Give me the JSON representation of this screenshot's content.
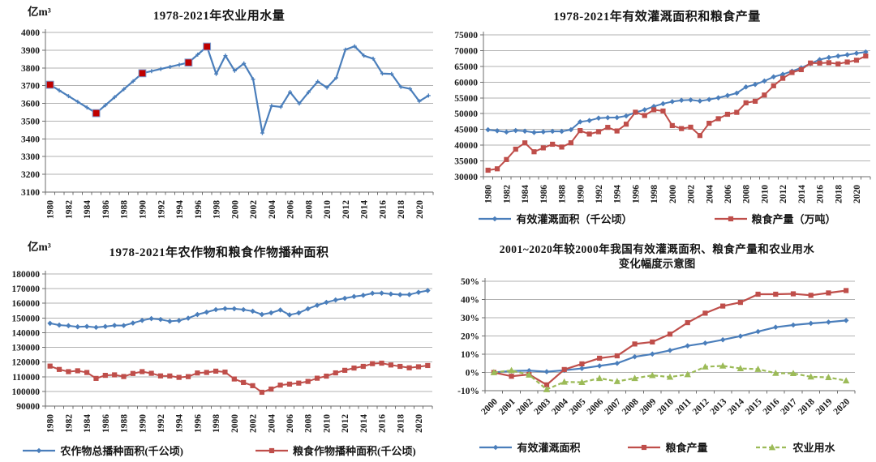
{
  "page": {
    "background": "#ffffff"
  },
  "colors": {
    "blue": "#4a7ebb",
    "red": "#bf4e4a",
    "highlight_red": "#c00000",
    "highlight_stroke": "#7b9cd1",
    "green": "#9cbb58",
    "grid": "#b2b2b2",
    "axis": "#6e6e6e",
    "text": "#1a1a1a"
  },
  "chart_data": [
    {
      "type": "line",
      "title": "1978-2021年农业用水量",
      "unit_label": "亿m³",
      "ylim": [
        3100,
        4000
      ],
      "ytick_step": 100,
      "grid": true,
      "legend_position": "none",
      "x": [
        1980,
        1981,
        1982,
        1983,
        1984,
        1985,
        1986,
        1987,
        1988,
        1989,
        1990,
        1991,
        1992,
        1993,
        1994,
        1995,
        1996,
        1997,
        1998,
        1999,
        2000,
        2001,
        2002,
        2003,
        2004,
        2005,
        2006,
        2007,
        2008,
        2009,
        2010,
        2011,
        2012,
        2013,
        2014,
        2015,
        2016,
        2017,
        2018,
        2019,
        2020,
        2021
      ],
      "series": [
        {
          "name": "农业用水量",
          "color": "#4a7ebb",
          "marker": "plus",
          "dash": false,
          "values": [
            3705,
            3673,
            3641,
            3609,
            3577,
            3545,
            3590,
            3635,
            3680,
            3725,
            3770,
            3782,
            3794,
            3806,
            3818,
            3830,
            3875,
            3920,
            3766,
            3869,
            3784,
            3825,
            3736,
            3433,
            3586,
            3580,
            3664,
            3599,
            3663,
            3723,
            3689,
            3744,
            3903,
            3922,
            3869,
            3852,
            3768,
            3766,
            3693,
            3682,
            3612,
            3644
          ]
        }
      ],
      "highlight": {
        "marker": "square",
        "color": "#c00000",
        "years": [
          1980,
          1985,
          1990,
          1995,
          1997
        ]
      }
    },
    {
      "type": "line",
      "title": "1978-2021年有效灌溉面积和粮食产量",
      "unit_label": "",
      "ylim": [
        30000,
        75000
      ],
      "ytick_step": 5000,
      "grid": true,
      "legend_position": "bottom",
      "x": [
        1980,
        1981,
        1982,
        1983,
        1984,
        1985,
        1986,
        1987,
        1988,
        1989,
        1990,
        1991,
        1992,
        1993,
        1994,
        1995,
        1996,
        1997,
        1998,
        1999,
        2000,
        2001,
        2002,
        2003,
        2004,
        2005,
        2006,
        2007,
        2008,
        2009,
        2010,
        2011,
        2012,
        2013,
        2014,
        2015,
        2016,
        2017,
        2018,
        2019,
        2020,
        2021
      ],
      "series": [
        {
          "name": "有效灌溉面积（千公顷）",
          "color": "#4a7ebb",
          "marker": "diamond",
          "dash": false,
          "values": [
            44888,
            44574,
            44177,
            44644,
            44453,
            44036,
            44226,
            44403,
            44376,
            44917,
            47403,
            47822,
            48590,
            48728,
            48759,
            49281,
            50381,
            51239,
            52296,
            53158,
            53820,
            54249,
            54355,
            54014,
            54478,
            55029,
            55750,
            56518,
            58472,
            59261,
            60348,
            61682,
            62491,
            63473,
            64540,
            65873,
            67141,
            67816,
            68272,
            68679,
            69161,
            69561
          ]
        },
        {
          "name": "粮食产量（万吨）",
          "color": "#bf4e4a",
          "marker": "square",
          "dash": false,
          "values": [
            32056,
            32502,
            35450,
            38728,
            40731,
            37911,
            39151,
            40298,
            39408,
            40755,
            44624,
            43529,
            44266,
            45649,
            44510,
            46662,
            50454,
            49417,
            51230,
            50839,
            46218,
            45264,
            45706,
            43070,
            46947,
            48402,
            49804,
            50413,
            53434,
            53941,
            55911,
            58849,
            61223,
            63048,
            63965,
            66060,
            66044,
            66161,
            65789,
            66384,
            66949,
            68285
          ]
        }
      ]
    },
    {
      "type": "line",
      "title": "1978-2021年农作物和粮食作物播种面积",
      "unit_label": "亿m³",
      "ylim": [
        90000,
        180000
      ],
      "ytick_step": 10000,
      "grid": true,
      "legend_position": "bottom",
      "x": [
        1980,
        1981,
        1982,
        1983,
        1984,
        1985,
        1986,
        1987,
        1988,
        1989,
        1990,
        1991,
        1992,
        1993,
        1994,
        1995,
        1996,
        1997,
        1998,
        1999,
        2000,
        2001,
        2002,
        2003,
        2004,
        2005,
        2006,
        2007,
        2008,
        2009,
        2010,
        2011,
        2012,
        2013,
        2014,
        2015,
        2016,
        2017,
        2018,
        2019,
        2020,
        2021
      ],
      "series": [
        {
          "name": "农作物总播种面积(千公顷)",
          "color": "#4a7ebb",
          "marker": "diamond",
          "dash": false,
          "values": [
            146380,
            145157,
            144755,
            143993,
            144221,
            143626,
            144204,
            144957,
            144869,
            146554,
            148362,
            149586,
            149007,
            147741,
            148241,
            149879,
            152381,
            153969,
            155706,
            156373,
            156300,
            155708,
            154636,
            152415,
            153553,
            155488,
            152149,
            153464,
            156266,
            158639,
            160675,
            162283,
            163416,
            164626,
            165446,
            166829,
            166939,
            166332,
            165902,
            165931,
            167487,
            168695
          ]
        },
        {
          "name": "粮食作物播种面积(千公顷)",
          "color": "#bf4e4a",
          "marker": "square",
          "dash": false,
          "values": [
            117234,
            114958,
            113462,
            114047,
            112884,
            108845,
            110933,
            111268,
            110123,
            112205,
            113466,
            112314,
            110560,
            110509,
            109544,
            110060,
            112548,
            112912,
            113787,
            113161,
            108463,
            106080,
            103891,
            99410,
            101606,
            104278,
            104958,
            105638,
            106793,
            108986,
            110400,
            112610,
            114368,
            115907,
            117056,
            118897,
            119230,
            117989,
            117038,
            116064,
            116768,
            117631
          ]
        }
      ]
    },
    {
      "type": "line",
      "title": "2001~2020年较2000年我国有效灌溉面积、粮食产量和农业用水",
      "subtitle": "变化幅度示意图",
      "unit_label": "",
      "ylim": [
        -10,
        50
      ],
      "ytick_step": 10,
      "percent": true,
      "grid": true,
      "legend_position": "bottom",
      "x": [
        2000,
        2001,
        2002,
        2003,
        2004,
        2005,
        2006,
        2007,
        2008,
        2009,
        2010,
        2011,
        2012,
        2013,
        2014,
        2015,
        2016,
        2017,
        2018,
        2019,
        2020
      ],
      "series": [
        {
          "name": "有效灌溉面积",
          "color": "#4a7ebb",
          "marker": "diamond",
          "dash": false,
          "values": [
            0,
            0.8,
            1.0,
            0.4,
            1.2,
            2.2,
            3.6,
            5.0,
            8.6,
            10.1,
            12.1,
            14.6,
            16.1,
            17.9,
            19.9,
            22.4,
            24.8,
            26.0,
            26.9,
            27.6,
            28.5
          ]
        },
        {
          "name": "粮食产量",
          "color": "#bf4e4a",
          "marker": "square",
          "dash": false,
          "values": [
            0,
            -2.1,
            -1.1,
            -6.8,
            1.6,
            4.7,
            7.8,
            9.1,
            15.6,
            16.7,
            21.0,
            27.3,
            32.5,
            36.4,
            38.4,
            42.9,
            42.9,
            43.1,
            42.3,
            43.6,
            44.9
          ]
        },
        {
          "name": "农业用水",
          "color": "#9cbb58",
          "marker": "triangle",
          "dash": true,
          "values": [
            0,
            1.1,
            -1.3,
            -9.3,
            -5.2,
            -5.4,
            -3.2,
            -4.9,
            -3.2,
            -1.6,
            -2.5,
            -1.1,
            3.1,
            3.6,
            2.2,
            1.8,
            -0.4,
            -0.5,
            -2.4,
            -2.7,
            -4.5
          ]
        }
      ]
    }
  ]
}
